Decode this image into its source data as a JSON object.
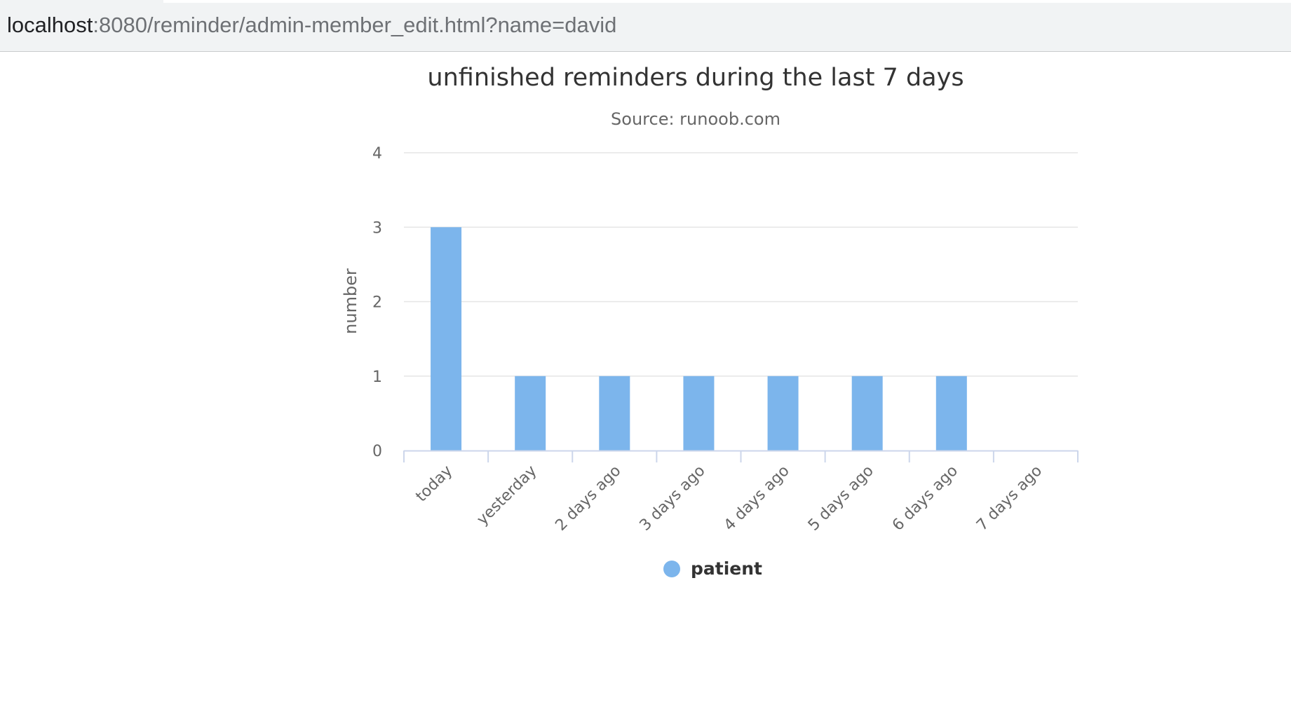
{
  "browser": {
    "url_host": "localhost",
    "url_rest": ":8080/reminder/admin-member_edit.html?name=david"
  },
  "chart_data": {
    "type": "bar",
    "title": "unfinished reminders during the last 7 days",
    "subtitle": "Source: runoob.com",
    "xlabel": "",
    "ylabel": "number",
    "categories": [
      "today",
      "yesterday",
      "2 days ago",
      "3 days ago",
      "4 days ago",
      "5 days ago",
      "6 days ago",
      "7 days ago"
    ],
    "series": [
      {
        "name": "patient",
        "values": [
          3,
          1,
          1,
          1,
          1,
          1,
          1,
          0
        ],
        "color": "#7cb5ec"
      }
    ],
    "ylim": [
      0,
      4
    ],
    "yticks": [
      0,
      1,
      2,
      3,
      4
    ],
    "grid": true,
    "legend_position": "bottom-center"
  }
}
